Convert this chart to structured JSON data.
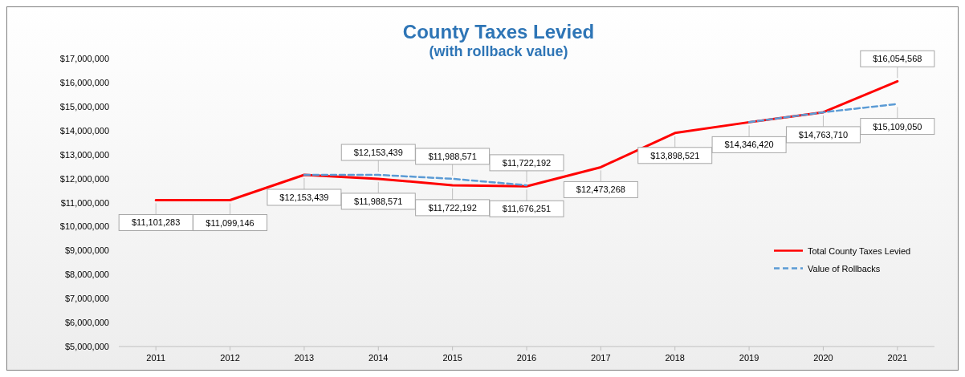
{
  "chart_data": {
    "type": "line",
    "title": "County Taxes Levied",
    "subtitle": "(with rollback value)",
    "categories": [
      "2011",
      "2012",
      "2013",
      "2014",
      "2015",
      "2016",
      "2017",
      "2018",
      "2019",
      "2020",
      "2021"
    ],
    "series": [
      {
        "name": "Total County Taxes Levied",
        "color": "#ff0000",
        "line_style": "solid",
        "values": [
          11101283,
          11099146,
          12153439,
          11988571,
          11722192,
          11676251,
          12473268,
          13898521,
          14346420,
          14763710,
          16054568
        ],
        "value_labels": [
          "$11,101,283",
          "$11,099,146",
          "$12,153,439",
          "$11,988,571",
          "$11,722,192",
          "$11,676,251",
          "$12,473,268",
          "$13,898,521",
          "$14,346,420",
          "$14,763,710",
          "$16,054,568"
        ]
      },
      {
        "name": "Value of Rollbacks",
        "color": "#5b9bd5",
        "line_style": "dashed",
        "values": [
          null,
          null,
          12150000,
          12153439,
          11988571,
          11722192,
          null,
          null,
          14350000,
          14760000,
          15109050
        ],
        "value_labels": [
          null,
          null,
          null,
          "$12,153,439",
          "$11,988,571",
          "$11,722,192",
          null,
          null,
          null,
          null,
          "$15,109,050"
        ]
      }
    ],
    "ylim": [
      5000000,
      17000000
    ],
    "yticks": [
      {
        "value": 5000000,
        "label": "$5,000,000"
      },
      {
        "value": 6000000,
        "label": "$6,000,000"
      },
      {
        "value": 7000000,
        "label": "$7,000,000"
      },
      {
        "value": 8000000,
        "label": "$8,000,000"
      },
      {
        "value": 9000000,
        "label": "$9,000,000"
      },
      {
        "value": 10000000,
        "label": "$10,000,000"
      },
      {
        "value": 11000000,
        "label": "$11,000,000"
      },
      {
        "value": 12000000,
        "label": "$12,000,000"
      },
      {
        "value": 13000000,
        "label": "$13,000,000"
      },
      {
        "value": 14000000,
        "label": "$14,000,000"
      },
      {
        "value": 15000000,
        "label": "$15,000,000"
      },
      {
        "value": 16000000,
        "label": "$16,000,000"
      },
      {
        "value": 17000000,
        "label": "$17,000,000"
      }
    ],
    "grid": false,
    "legend": "right"
  }
}
